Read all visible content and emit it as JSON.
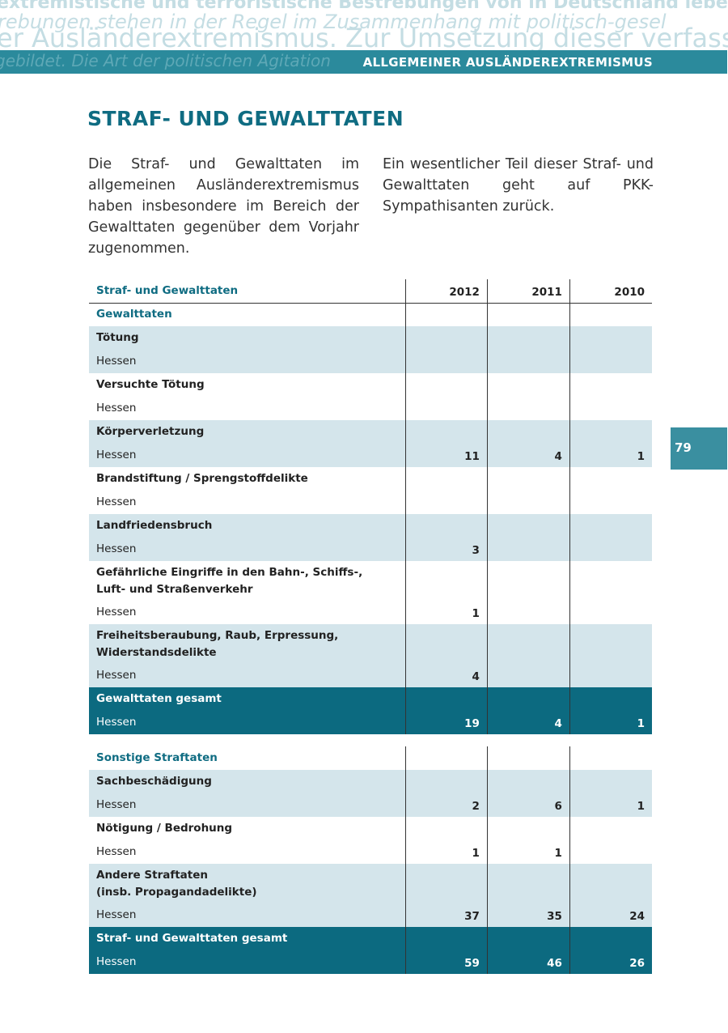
{
  "header": {
    "watermark": [
      "extremistische und terroristische Bestrebungen von in Deutschland lebend",
      "rebungen stehen in der Regel im Zusammenhang mit politisch-gesel",
      "er Ausländerextremismus. Zur Umsetzung dieser verfassung",
      "gebildet. Die Art der politischen Agitation"
    ],
    "section": "ALLGEMEINER AUSLÄNDEREXTREMISMUS"
  },
  "page_number": "79",
  "title": "STRAF- UND GEWALTTATEN",
  "paragraphs": [
    "Die Straf- und Gewalttaten im allgemeinen Ausländerextremismus haben insbesondere im Bereich der Gewalttaten gegenüber dem Vorjahr zugenommen.",
    "Ein wesentlicher Teil dieser Straf- und Gewalttaten geht auf PKK-Sympathisanten zurück."
  ],
  "table": {
    "columns": [
      "Straf- und Gewalttaten",
      "2012",
      "2011",
      "2010"
    ],
    "sections": [
      {
        "heading": "Gewalttaten",
        "items": [
          {
            "title": "Tötung",
            "region": "Hessen",
            "values": [
              null,
              null,
              null
            ]
          },
          {
            "title": "Versuchte Tötung",
            "region": "Hessen",
            "values": [
              null,
              null,
              null
            ]
          },
          {
            "title": "Körperverletzung",
            "region": "Hessen",
            "values": [
              11,
              4,
              1
            ]
          },
          {
            "title": "Brandstiftung / Sprengstoffdelikte",
            "region": "Hessen",
            "values": [
              null,
              null,
              null
            ]
          },
          {
            "title": "Landfriedensbruch",
            "region": "Hessen",
            "values": [
              3,
              null,
              null
            ]
          },
          {
            "title": "Gefährliche Eingriffe in den Bahn-, Schiffs-,\nLuft- und Straßenverkehr",
            "region": "Hessen",
            "values": [
              1,
              null,
              null
            ]
          },
          {
            "title": "Freiheitsberaubung, Raub, Erpressung,\nWiderstandsdelikte",
            "region": "Hessen",
            "values": [
              4,
              null,
              null
            ]
          }
        ],
        "total": {
          "title": "Gewalttaten gesamt",
          "region": "Hessen",
          "values": [
            19,
            4,
            1
          ]
        }
      },
      {
        "heading": "Sonstige Straftaten",
        "items": [
          {
            "title": "Sachbeschädigung",
            "region": "Hessen",
            "values": [
              2,
              6,
              1
            ]
          },
          {
            "title": "Nötigung / Bedrohung",
            "region": "Hessen",
            "values": [
              1,
              1,
              null
            ]
          },
          {
            "title": "Andere Straftaten\n(insb. Propagandadelikte)",
            "region": "Hessen",
            "values": [
              37,
              35,
              24
            ]
          }
        ],
        "total": {
          "title": "Straf- und Gewalttaten gesamt",
          "region": "Hessen",
          "values": [
            59,
            46,
            26
          ]
        }
      }
    ]
  }
}
